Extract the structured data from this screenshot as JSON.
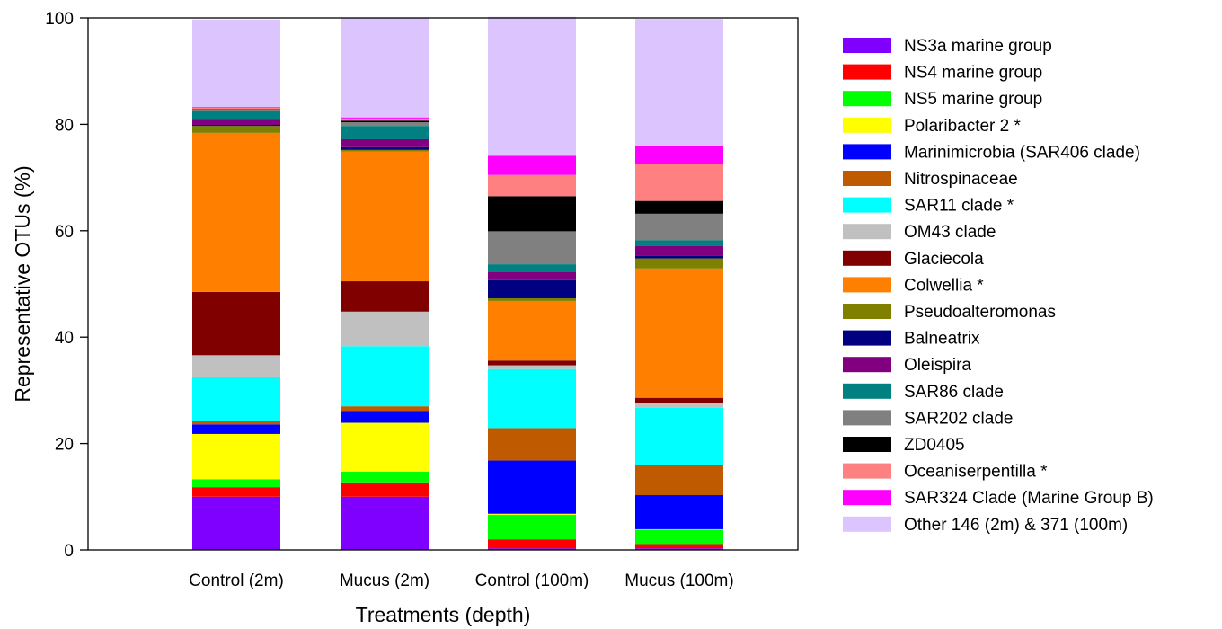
{
  "chart_data": {
    "type": "bar",
    "stacked": true,
    "title": "",
    "xlabel": "Treatments (depth)",
    "ylabel": "Representative OTUs (%)",
    "ylim": [
      0,
      100
    ],
    "yticks": [
      0,
      20,
      40,
      60,
      80,
      100
    ],
    "grid": false,
    "legend_position": "right",
    "categories": [
      "Control (2m)",
      "Mucus (2m)",
      "Control (100m)",
      "Mucus (100m)"
    ],
    "series": [
      {
        "name": "NS3a marine group",
        "color": "#7F00FF",
        "values": [
          10.0,
          10.0,
          0.3,
          0.3
        ]
      },
      {
        "name": "NS4 marine group",
        "color": "#FF0000",
        "values": [
          1.8,
          2.7,
          1.7,
          0.8
        ]
      },
      {
        "name": "NS5 marine group",
        "color": "#00FF00",
        "values": [
          1.5,
          2.0,
          4.6,
          2.7
        ]
      },
      {
        "name": "Polaribacter 2 *",
        "color": "#FFFF00",
        "values": [
          8.5,
          9.2,
          0.2,
          0.1
        ]
      },
      {
        "name": "Marinimicrobia (SAR406 clade)",
        "color": "#0000FF",
        "values": [
          1.8,
          2.2,
          10.0,
          6.4
        ]
      },
      {
        "name": "Nitrospinaceae",
        "color": "#C05A00",
        "values": [
          0.7,
          0.9,
          6.1,
          5.6
        ]
      },
      {
        "name": "SAR11 clade *",
        "color": "#00FFFF",
        "values": [
          8.3,
          11.3,
          11.1,
          10.8
        ]
      },
      {
        "name": "OM43 clade",
        "color": "#C0C0C0",
        "values": [
          4.0,
          6.5,
          0.7,
          0.9
        ]
      },
      {
        "name": "Glaciecola",
        "color": "#800000",
        "values": [
          11.9,
          5.7,
          0.9,
          1.0
        ]
      },
      {
        "name": "Colwellia *",
        "color": "#FF8000",
        "values": [
          29.9,
          24.4,
          11.2,
          24.3
        ]
      },
      {
        "name": "Pseudoalteromonas",
        "color": "#808000",
        "values": [
          1.3,
          0.3,
          0.5,
          1.9
        ]
      },
      {
        "name": "Balneatrix",
        "color": "#000080",
        "values": [
          0.2,
          0.5,
          3.4,
          0.5
        ]
      },
      {
        "name": "Oleispira",
        "color": "#800080",
        "values": [
          1.1,
          1.5,
          1.5,
          1.8
        ]
      },
      {
        "name": "SAR86 clade",
        "color": "#008080",
        "values": [
          1.5,
          2.5,
          1.5,
          1.1
        ]
      },
      {
        "name": "SAR202 clade",
        "color": "#808080",
        "values": [
          0.3,
          0.7,
          6.2,
          5.0
        ]
      },
      {
        "name": "ZD0405",
        "color": "#000000",
        "values": [
          0.1,
          0.3,
          6.6,
          2.4
        ]
      },
      {
        "name": "Oceaniserpentilla *",
        "color": "#FF8080",
        "values": [
          0.3,
          0.4,
          4.0,
          7.0
        ]
      },
      {
        "name": "SAR324 Clade (Marine Group B)",
        "color": "#FF00FF",
        "values": [
          0.1,
          0.2,
          3.6,
          3.3
        ]
      },
      {
        "name": "Other 146 (2m) & 371 (100m)",
        "color": "#DCC4FF",
        "values": [
          16.4,
          18.8,
          26.1,
          23.9
        ]
      }
    ]
  }
}
